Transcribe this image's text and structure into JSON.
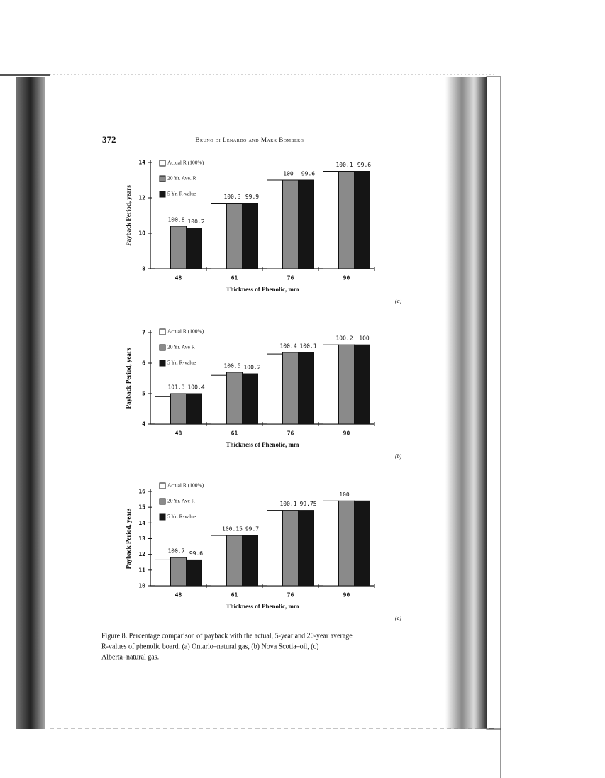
{
  "page_number": "372",
  "running_head": "Bruno di Lenardo and Mark Bomberg",
  "chart_data": [
    {
      "type": "bar",
      "ylabel": "Payback Period, years",
      "xlabel": "Thickness of Phenolic, mm",
      "tag": "(a)",
      "categories": [
        "48",
        "61",
        "76",
        "90"
      ],
      "ylim": [
        8,
        14
      ],
      "yticks": [
        8,
        10,
        12,
        14
      ],
      "series": [
        {
          "name": "Actual R (100%)",
          "color": "#ffffff",
          "values": [
            10.3,
            11.7,
            13.0,
            13.5
          ]
        },
        {
          "name": "20 Yr. Ave. R",
          "color": "#8a8a8a",
          "values": [
            10.4,
            11.7,
            13.0,
            13.5
          ],
          "annotations": [
            "100.8",
            "100.3",
            "100",
            "100.1"
          ]
        },
        {
          "name": "5 Yr. R-value",
          "color": "#151515",
          "values": [
            10.3,
            11.7,
            13.0,
            13.5
          ],
          "annotations": [
            "100.2",
            "99.9",
            "99.6",
            "99.6"
          ]
        }
      ]
    },
    {
      "type": "bar",
      "ylabel": "Payback Period, years",
      "xlabel": "Thickness of Phenolic, mm",
      "tag": "(b)",
      "categories": [
        "48",
        "61",
        "76",
        "90"
      ],
      "ylim": [
        4,
        7
      ],
      "yticks": [
        4,
        5,
        6,
        7
      ],
      "series": [
        {
          "name": "Actual R (100%)",
          "color": "#ffffff",
          "values": [
            4.9,
            5.6,
            6.3,
            6.6
          ]
        },
        {
          "name": "20 Yr. Ave R",
          "color": "#8a8a8a",
          "values": [
            5.0,
            5.7,
            6.35,
            6.6
          ],
          "annotations": [
            "101.3",
            "100.5",
            "100.4",
            "100.2"
          ]
        },
        {
          "name": "5 Yr. R-value",
          "color": "#151515",
          "values": [
            5.0,
            5.65,
            6.35,
            6.6
          ],
          "annotations": [
            "100.4",
            "100.2",
            "100.1",
            "100"
          ]
        }
      ]
    },
    {
      "type": "bar",
      "ylabel": "Payback Period, years",
      "xlabel": "Thickness of Phenolic, mm",
      "tag": "(c)",
      "categories": [
        "48",
        "61",
        "76",
        "90"
      ],
      "ylim": [
        10,
        16
      ],
      "yticks": [
        10,
        11,
        12,
        13,
        14,
        15,
        16
      ],
      "series": [
        {
          "name": "Actual R (100%)",
          "color": "#ffffff",
          "values": [
            11.65,
            13.2,
            14.8,
            15.4
          ]
        },
        {
          "name": "20 Yr. Ave R",
          "color": "#8a8a8a",
          "values": [
            11.8,
            13.2,
            14.8,
            15.4
          ],
          "annotations": [
            "100.7",
            "100.15",
            "100.1",
            "100"
          ]
        },
        {
          "name": "5 Yr. R-value",
          "color": "#151515",
          "values": [
            11.65,
            13.2,
            14.8,
            15.4
          ],
          "annotations": [
            "99.6",
            "99.7",
            "99.75",
            null
          ]
        }
      ]
    }
  ],
  "caption": [
    "Figure 8. Percentage comparison of payback with the actual, 5-year and 20-year average",
    "R-values of phenolic board. (a) Ontario–natural gas, (b) Nova Scotia–oil, (c)",
    "Alberta–natural gas."
  ]
}
